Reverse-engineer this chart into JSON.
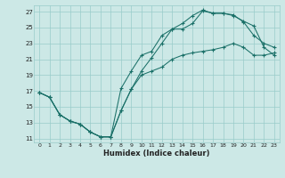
{
  "xlabel": "Humidex (Indice chaleur)",
  "bg_color": "#cce8e6",
  "grid_color": "#99ccca",
  "line_color": "#1a7068",
  "xlim": [
    -0.5,
    23.5
  ],
  "ylim": [
    10.5,
    27.8
  ],
  "xticks": [
    0,
    1,
    2,
    3,
    4,
    5,
    6,
    7,
    8,
    9,
    10,
    11,
    12,
    13,
    14,
    15,
    16,
    17,
    18,
    19,
    20,
    21,
    22,
    23
  ],
  "yticks": [
    11,
    13,
    15,
    17,
    19,
    21,
    23,
    25,
    27
  ],
  "line1_x": [
    0,
    1,
    2,
    3,
    4,
    5,
    6,
    7,
    8,
    9,
    10,
    11,
    12,
    13,
    14,
    15,
    16,
    17,
    18,
    19,
    20,
    21,
    22,
    23
  ],
  "line1_y": [
    16.8,
    16.2,
    14.0,
    13.2,
    12.8,
    11.8,
    11.2,
    11.2,
    14.5,
    17.2,
    19.5,
    21.2,
    23.0,
    24.8,
    24.8,
    25.5,
    27.1,
    26.8,
    26.8,
    26.6,
    25.7,
    24.0,
    23.0,
    22.5
  ],
  "line2_x": [
    0,
    1,
    2,
    3,
    4,
    5,
    6,
    7,
    8,
    9,
    10,
    11,
    12,
    13,
    14,
    15,
    16,
    17,
    18,
    19,
    20,
    21,
    22,
    23
  ],
  "line2_y": [
    16.8,
    16.2,
    14.0,
    13.2,
    12.8,
    11.8,
    11.2,
    11.2,
    17.3,
    19.5,
    21.5,
    22.0,
    24.0,
    24.8,
    25.5,
    26.5,
    27.2,
    26.8,
    26.8,
    26.5,
    25.8,
    25.2,
    22.5,
    21.5
  ],
  "line3_x": [
    0,
    1,
    2,
    3,
    4,
    5,
    6,
    7,
    8,
    9,
    10,
    11,
    12,
    13,
    14,
    15,
    16,
    17,
    18,
    19,
    20,
    21,
    22,
    23
  ],
  "line3_y": [
    16.8,
    16.2,
    14.0,
    13.2,
    12.8,
    11.8,
    11.2,
    11.2,
    14.5,
    17.2,
    19.0,
    19.5,
    20.0,
    21.0,
    21.5,
    21.8,
    22.0,
    22.2,
    22.5,
    23.0,
    22.5,
    21.5,
    21.5,
    21.8
  ]
}
